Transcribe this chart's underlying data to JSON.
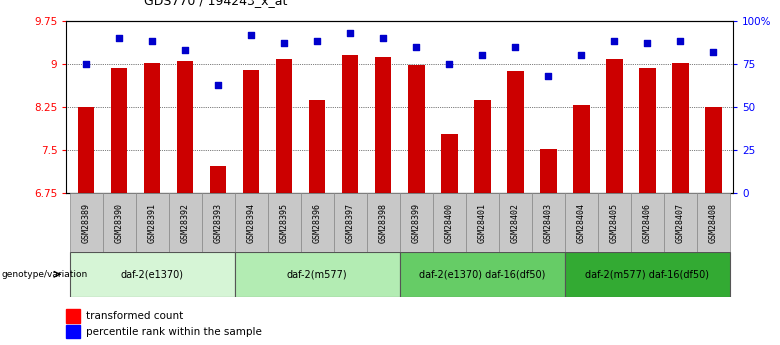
{
  "title": "GDS770 / 194243_x_at",
  "samples": [
    "GSM28389",
    "GSM28390",
    "GSM28391",
    "GSM28392",
    "GSM28393",
    "GSM28394",
    "GSM28395",
    "GSM28396",
    "GSM28397",
    "GSM28398",
    "GSM28399",
    "GSM28400",
    "GSM28401",
    "GSM28402",
    "GSM28403",
    "GSM28404",
    "GSM28405",
    "GSM28406",
    "GSM28407",
    "GSM28408"
  ],
  "bar_values": [
    8.25,
    8.93,
    9.02,
    9.05,
    7.22,
    8.9,
    9.08,
    8.37,
    9.15,
    9.12,
    8.98,
    7.78,
    8.37,
    8.88,
    7.52,
    8.28,
    9.08,
    8.93,
    9.02,
    8.25
  ],
  "dot_values": [
    75,
    90,
    88,
    83,
    63,
    92,
    87,
    88,
    93,
    90,
    85,
    75,
    80,
    85,
    68,
    80,
    88,
    87,
    88,
    82
  ],
  "groups": [
    {
      "label": "daf-2(e1370)",
      "start": 0,
      "end": 5,
      "color": "#d6f5d6"
    },
    {
      "label": "daf-2(m577)",
      "start": 5,
      "end": 10,
      "color": "#b3ecb3"
    },
    {
      "label": "daf-2(e1370) daf-16(df50)",
      "start": 10,
      "end": 15,
      "color": "#66cc66"
    },
    {
      "label": "daf-2(m577) daf-16(df50)",
      "start": 15,
      "end": 20,
      "color": "#33aa33"
    }
  ],
  "ylim_left": [
    6.75,
    9.75
  ],
  "yticks_left": [
    6.75,
    7.5,
    8.25,
    9.0,
    9.75
  ],
  "ytick_labels_left": [
    "6.75",
    "7.5",
    "8.25",
    "9",
    "9.75"
  ],
  "yticks_right": [
    0,
    25,
    50,
    75,
    100
  ],
  "ytick_labels_right": [
    "0",
    "25",
    "50",
    "75",
    "100%"
  ],
  "bar_color": "#cc0000",
  "dot_color": "#0000cc",
  "bar_width": 0.5,
  "background_color": "#ffffff",
  "legend_label_bar": "transformed count",
  "legend_label_dot": "percentile rank within the sample",
  "genotype_label": "genotype/variation"
}
